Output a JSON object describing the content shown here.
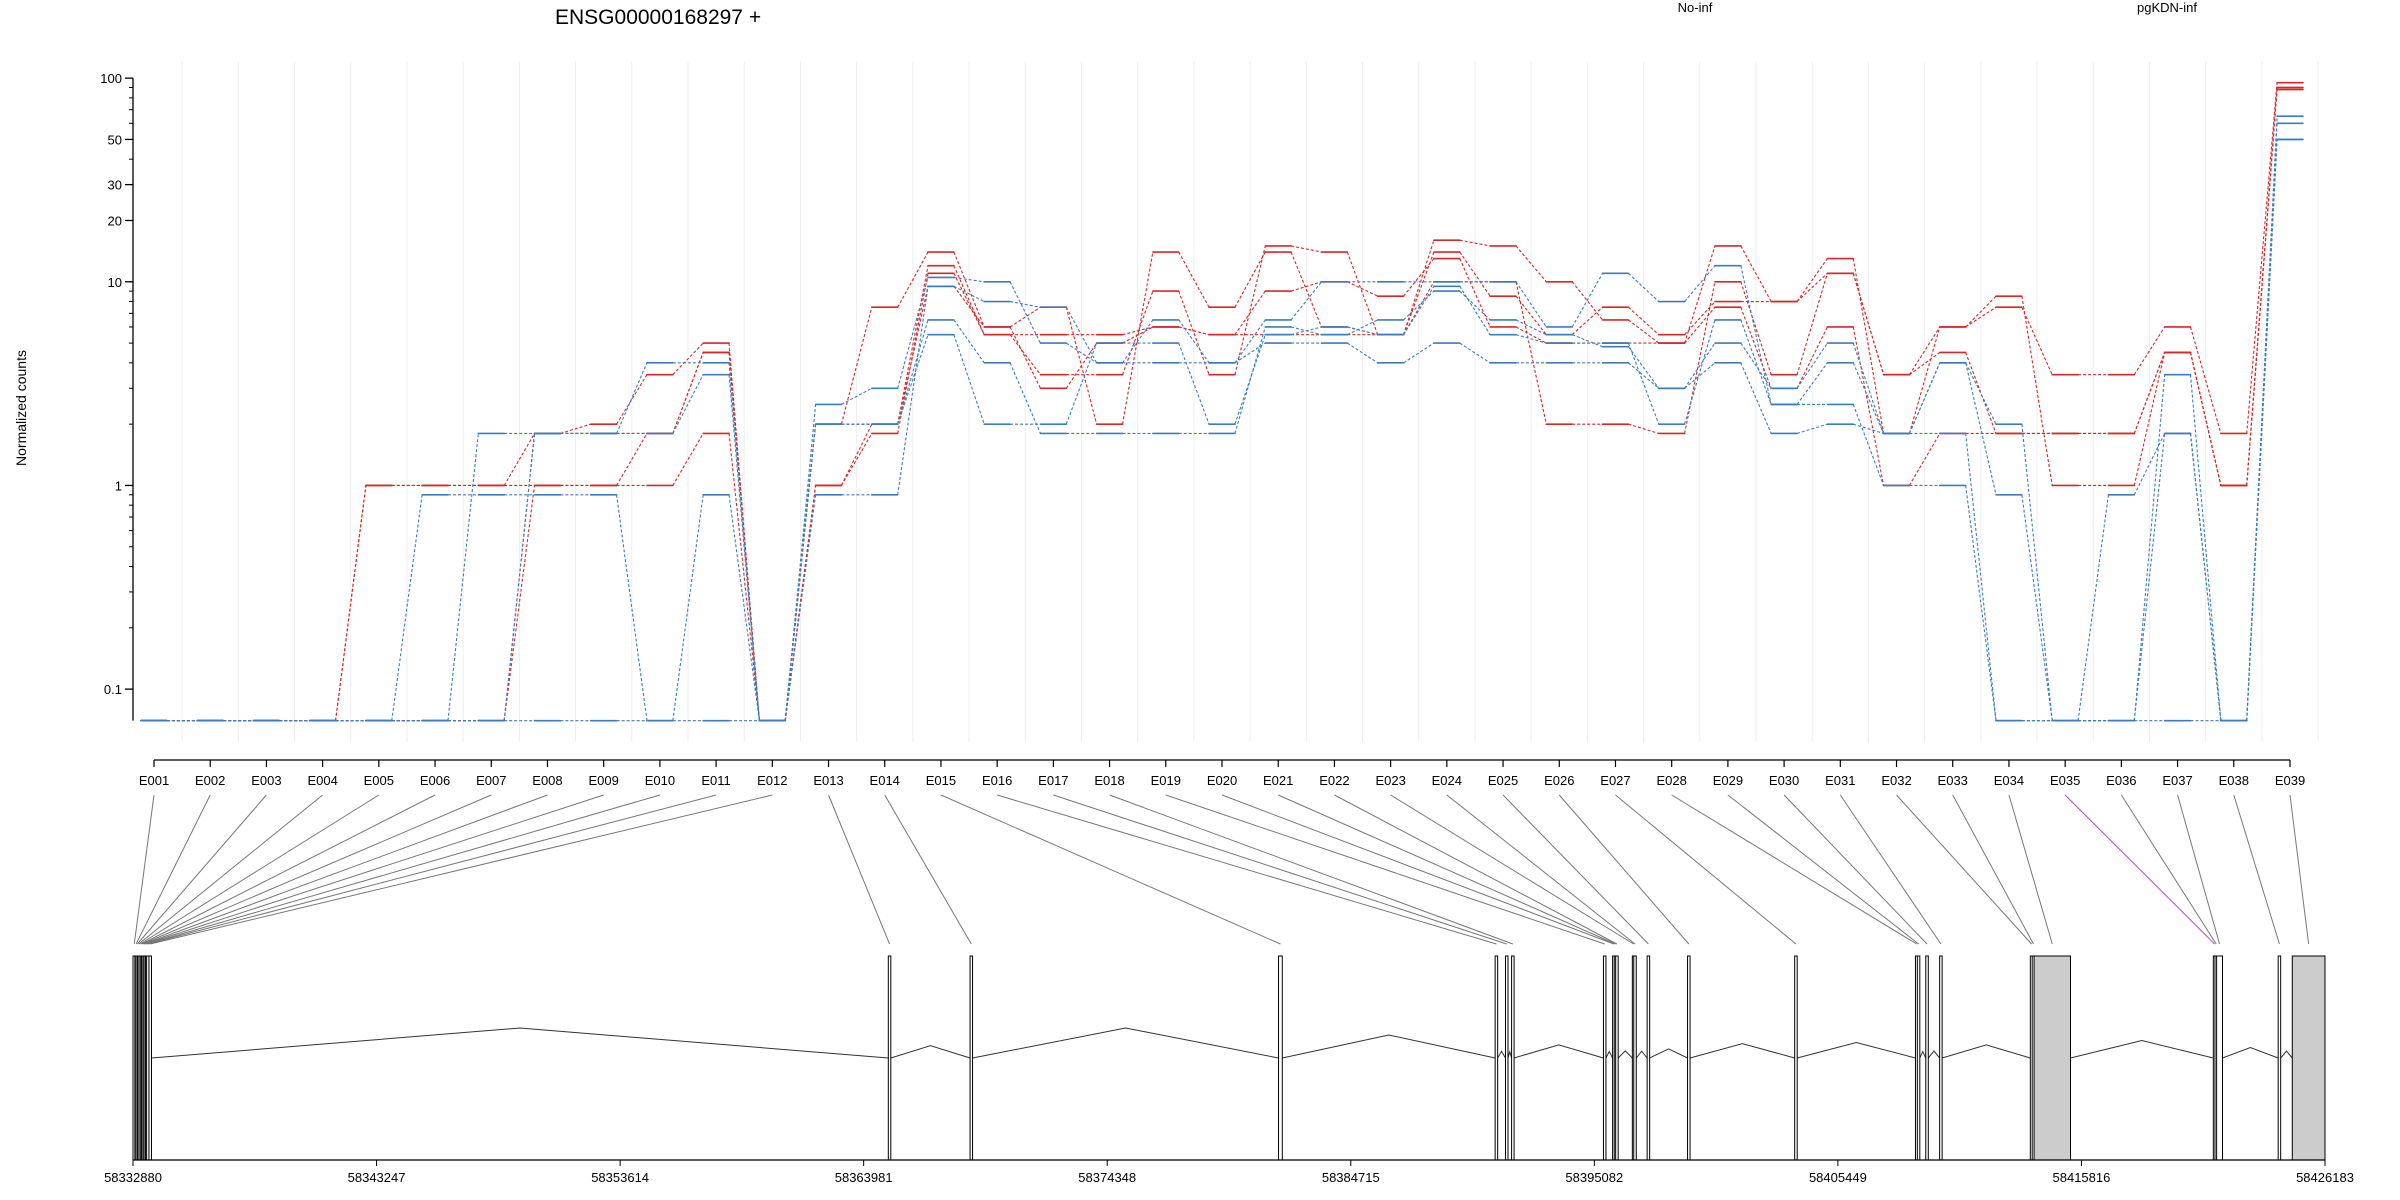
{
  "chart_data": {
    "type": "line",
    "title": "ENSG00000168297 +",
    "ylabel": "Normalized counts",
    "y_scale": "log",
    "ylim": [
      0.07,
      100
    ],
    "y_ticks": [
      "100",
      "50",
      "30",
      "20",
      "10",
      "1",
      "0.1"
    ],
    "y_tick_values": [
      100,
      50,
      30,
      20,
      10,
      1,
      0.1
    ],
    "grid": "vertical-light",
    "legend": [
      {
        "name": "No-inf",
        "color": "#d62728"
      },
      {
        "name": "pgKDN-inf",
        "color": "#3a7dbf"
      }
    ],
    "categories": [
      "E001",
      "E002",
      "E003",
      "E004",
      "E005",
      "E006",
      "E007",
      "E008",
      "E009",
      "E010",
      "E011",
      "E012",
      "E013",
      "E014",
      "E015",
      "E016",
      "E017",
      "E018",
      "E019",
      "E020",
      "E021",
      "E022",
      "E023",
      "E024",
      "E025",
      "E026",
      "E027",
      "E028",
      "E029",
      "E030",
      "E031",
      "E032",
      "E033",
      "E034",
      "E035",
      "E036",
      "E037",
      "E038",
      "E039"
    ],
    "series": [
      {
        "group": "No-inf",
        "color": "#d62728",
        "values": [
          0.07,
          0.07,
          0.07,
          0.07,
          1,
          1,
          1,
          1,
          1,
          1,
          1.8,
          0.07,
          1,
          1.8,
          11,
          5.5,
          5.5,
          5.5,
          6,
          5.5,
          5.5,
          5.5,
          5.5,
          10,
          10,
          2,
          2,
          1.8,
          10,
          3.5,
          11,
          3.5,
          4.5,
          1.8,
          1.8,
          1.8,
          4.5,
          1,
          88
        ]
      },
      {
        "group": "No-inf",
        "color": "#d62728",
        "values": [
          0.07,
          0.07,
          0.07,
          0.07,
          0.07,
          0.07,
          0.07,
          1,
          1,
          1.8,
          4.5,
          0.07,
          2,
          2,
          12,
          5.5,
          3.5,
          3.5,
          9,
          3.5,
          15,
          14,
          5.5,
          16,
          15,
          10,
          6.5,
          5,
          15,
          8,
          13,
          1.8,
          6,
          7.5,
          3.5,
          3.5,
          6,
          1.8,
          95
        ]
      },
      {
        "group": "No-inf",
        "color": "#d62728",
        "values": [
          0.07,
          0.07,
          0.07,
          0.07,
          1,
          1,
          1,
          1.8,
          2,
          3.5,
          5,
          0.07,
          2,
          7.5,
          14,
          6,
          7.5,
          2,
          14,
          7.5,
          14,
          6,
          5.5,
          14,
          8.5,
          5.5,
          7.5,
          5.5,
          8,
          8,
          11,
          3.5,
          6,
          8.5,
          1,
          1,
          4.5,
          1,
          90
        ]
      },
      {
        "group": "No-inf",
        "color": "#d62728",
        "values": [
          0.07,
          0.07,
          0.07,
          0.07,
          0.07,
          0.07,
          0.07,
          1.8,
          1.8,
          1.8,
          4.5,
          0.07,
          1,
          2,
          9.5,
          6,
          3,
          5,
          6,
          5.5,
          9,
          10,
          8.5,
          13,
          6,
          5,
          5,
          5,
          7.5,
          3,
          6,
          1,
          1.8,
          1.8,
          1.8,
          1.8,
          4.5,
          1,
          88
        ]
      },
      {
        "group": "pgKDN-inf",
        "color": "#3a7dbf",
        "values": [
          0.07,
          0.07,
          0.07,
          0.07,
          0.07,
          0.9,
          0.9,
          0.9,
          0.9,
          0.07,
          0.9,
          0.07,
          0.9,
          0.9,
          9.5,
          8,
          7.5,
          4,
          4,
          4,
          5,
          5,
          4,
          5,
          4,
          4,
          4,
          3,
          4,
          1.8,
          2,
          1.8,
          4,
          0.9,
          0.07,
          0.9,
          1.8,
          0.07,
          60
        ]
      },
      {
        "group": "pgKDN-inf",
        "color": "#3a7dbf",
        "values": [
          0.07,
          0.07,
          0.07,
          0.07,
          0.07,
          0.07,
          1.8,
          1.8,
          1.8,
          4,
          4,
          0.07,
          2.5,
          3,
          10.5,
          10,
          5,
          4,
          6.5,
          4,
          6.5,
          10,
          10,
          10,
          10,
          6,
          11,
          8,
          12,
          2.5,
          4,
          1.8,
          4,
          2,
          0.07,
          0.07,
          3.5,
          0.07,
          50
        ]
      },
      {
        "group": "pgKDN-inf",
        "color": "#3a7dbf",
        "values": [
          0.07,
          0.07,
          0.07,
          0.07,
          0.07,
          0.07,
          0.07,
          1.8,
          1.8,
          1.8,
          3.5,
          0.07,
          2,
          2,
          6.5,
          4,
          1.8,
          1.8,
          1.8,
          1.8,
          6,
          5.5,
          6.5,
          9,
          6.5,
          5.5,
          4.8,
          3,
          5,
          3,
          5,
          1.8,
          1.8,
          0.07,
          0.07,
          0.07,
          1.8,
          0.07,
          50
        ]
      },
      {
        "group": "pgKDN-inf",
        "color": "#3a7dbf",
        "values": [
          0.07,
          0.07,
          0.07,
          0.07,
          0.07,
          0.07,
          0.07,
          0.07,
          0.07,
          0.07,
          0.07,
          0.07,
          2,
          2,
          5.5,
          2,
          2,
          5,
          5,
          2,
          5.5,
          6,
          5.5,
          9.5,
          5.5,
          5,
          5,
          2,
          6.5,
          2.5,
          2.5,
          1,
          1,
          0.07,
          0.07,
          0.07,
          0.07,
          0.07,
          65
        ]
      }
    ],
    "gene_model": {
      "coordinate_ticks": [
        "58332880",
        "58343247",
        "58353614",
        "58363981",
        "58374348",
        "58384715",
        "58395082",
        "58405449",
        "58415816",
        "58426183"
      ],
      "coord_range": [
        58332880,
        58426183
      ],
      "exons": [
        {
          "id": "E001",
          "start": 58332880,
          "end": 58332950
        },
        {
          "id": "E002",
          "start": 58332960,
          "end": 58333000
        },
        {
          "id": "E003",
          "start": 58333010,
          "end": 58333060
        },
        {
          "id": "E004",
          "start": 58333070,
          "end": 58333120
        },
        {
          "id": "E005",
          "start": 58333130,
          "end": 58333180
        },
        {
          "id": "E006",
          "start": 58333190,
          "end": 58333230
        },
        {
          "id": "E007",
          "start": 58333240,
          "end": 58333290
        },
        {
          "id": "E008",
          "start": 58333300,
          "end": 58333340
        },
        {
          "id": "E009",
          "start": 58333350,
          "end": 58333400
        },
        {
          "id": "E010",
          "start": 58333410,
          "end": 58333450
        },
        {
          "id": "E011",
          "start": 58333460,
          "end": 58333560
        },
        {
          "id": "E012",
          "start": 58333560,
          "end": 58333600
        },
        {
          "id": "E013",
          "start": 58365030,
          "end": 58365130
        },
        {
          "id": "E014",
          "start": 58368510,
          "end": 58368610
        },
        {
          "id": "E015",
          "start": 58381640,
          "end": 58381800
        },
        {
          "id": "E016",
          "start": 58390860,
          "end": 58390940
        },
        {
          "id": "E017",
          "start": 58391300,
          "end": 58391370
        },
        {
          "id": "E018",
          "start": 58391560,
          "end": 58391640
        },
        {
          "id": "E019",
          "start": 58395470,
          "end": 58395550
        },
        {
          "id": "E020",
          "start": 58395860,
          "end": 58395930
        },
        {
          "id": "E021",
          "start": 58395930,
          "end": 58396000
        },
        {
          "id": "E022",
          "start": 58395990,
          "end": 58396060
        },
        {
          "id": "E023",
          "start": 58396700,
          "end": 58396760
        },
        {
          "id": "E024",
          "start": 58396760,
          "end": 58396830
        },
        {
          "id": "E025",
          "start": 58397330,
          "end": 58397420
        },
        {
          "id": "E026",
          "start": 58399050,
          "end": 58399130
        },
        {
          "id": "E027",
          "start": 58403610,
          "end": 58403690
        },
        {
          "id": "E028",
          "start": 58408750,
          "end": 58408830
        },
        {
          "id": "E029",
          "start": 58408830,
          "end": 58408900
        },
        {
          "id": "E030",
          "start": 58409190,
          "end": 58409260
        },
        {
          "id": "E031",
          "start": 58409780,
          "end": 58409850
        },
        {
          "id": "E032",
          "start": 58413640,
          "end": 58413720
        },
        {
          "id": "E033",
          "start": 58413720,
          "end": 58413790
        },
        {
          "id": "E034",
          "start": 58413800,
          "end": 58415350
        },
        {
          "id": "E035",
          "start": 58421430,
          "end": 58421500
        },
        {
          "id": "E036",
          "start": 58421500,
          "end": 58421570
        },
        {
          "id": "E037",
          "start": 58421570,
          "end": 58421820
        },
        {
          "id": "E038",
          "start": 58424190,
          "end": 58424280
        },
        {
          "id": "E039",
          "start": 58424790,
          "end": 58426183
        }
      ]
    }
  }
}
